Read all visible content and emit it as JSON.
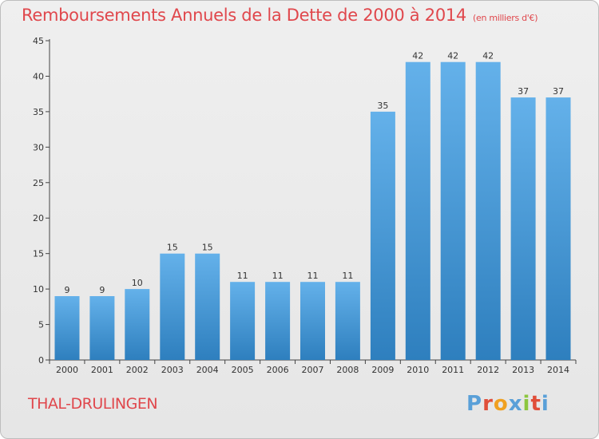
{
  "title": "Remboursements Annuels de la Dette de 2000 à 2014",
  "unit": "(en milliers d'€)",
  "commune": "THAL-DRULINGEN",
  "logo": {
    "letters": [
      "P",
      "r",
      "o",
      "x",
      "i",
      "t",
      "i"
    ],
    "colors": [
      "#5aa0d8",
      "#e04e39",
      "#f0a020",
      "#5aa0d8",
      "#8cc63f",
      "#e04e39",
      "#5aa0d8"
    ]
  },
  "colors": {
    "title": "#e0474c",
    "bar_top": "#64b1ea",
    "bar_bottom": "#2e7fbe",
    "axis": "#444444",
    "grid": "#d0d0d0"
  },
  "chart_data": {
    "type": "bar",
    "categories": [
      "2000",
      "2001",
      "2002",
      "2003",
      "2004",
      "2005",
      "2006",
      "2007",
      "2008",
      "2009",
      "2010",
      "2011",
      "2012",
      "2013",
      "2014"
    ],
    "values": [
      9,
      9,
      10,
      15,
      15,
      11,
      11,
      11,
      11,
      35,
      42,
      42,
      42,
      37,
      37
    ],
    "data_labels": [
      "9",
      "9",
      "10",
      "15",
      "15",
      "11",
      "11",
      "11",
      "11",
      "35",
      "42",
      "42",
      "42",
      "37",
      "37"
    ],
    "yticks": [
      0,
      5,
      10,
      15,
      20,
      25,
      30,
      35,
      40,
      45
    ],
    "ylim": [
      0,
      45
    ],
    "grid": false
  }
}
